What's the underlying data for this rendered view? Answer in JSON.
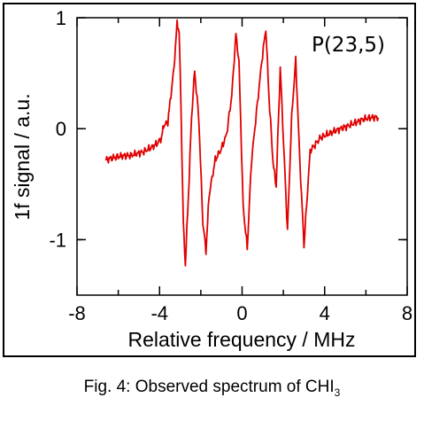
{
  "caption": {
    "text": "Fig. 4: Observed spectrum of CHI",
    "subscript": "3"
  },
  "chart_data": {
    "type": "line",
    "xlabel": "Relative frequency / MHz",
    "ylabel": "1f signal / a.u.",
    "annotation": "P(23,5)",
    "xlim": [
      -8,
      8
    ],
    "ylim": [
      -1.5,
      1.0
    ],
    "x_ticks": [
      -8,
      -4,
      0,
      4,
      8
    ],
    "y_ticks": [
      1,
      0,
      -1
    ],
    "x_tick_labels": [
      "-8",
      "-4",
      "0",
      "4",
      "8"
    ],
    "y_tick_labels": [
      "1",
      "0",
      "-1"
    ],
    "grid": false,
    "line_color": "#e00000",
    "series": [
      {
        "x": [
          -6.6,
          -6.0,
          -5.4,
          -4.8,
          -4.4,
          -4.1,
          -3.9,
          -3.8,
          -3.6,
          -3.45,
          -3.3,
          -3.15,
          -3.05,
          -2.95,
          -2.85,
          -2.75,
          -2.6,
          -2.45,
          -2.3,
          -2.1,
          -1.9,
          -1.75,
          -1.6,
          -1.3,
          -1.0,
          -0.75,
          -0.5,
          -0.3,
          -0.15,
          0.05,
          0.25,
          0.45,
          0.7,
          0.95,
          1.15,
          1.3,
          1.5,
          1.65,
          1.85,
          2.05,
          2.2,
          2.4,
          2.6,
          2.8,
          3.0,
          3.3,
          3.8,
          4.5,
          5.2,
          5.8,
          6.2,
          6.6
        ],
        "y": [
          -0.28,
          -0.25,
          -0.24,
          -0.21,
          -0.17,
          -0.13,
          -0.08,
          0.03,
          0.06,
          0.3,
          0.55,
          0.95,
          0.88,
          0.1,
          -0.85,
          -1.22,
          -0.6,
          0.1,
          0.52,
          0.1,
          -0.85,
          -1.1,
          -0.6,
          -0.28,
          -0.18,
          -0.05,
          0.3,
          0.85,
          0.6,
          -0.7,
          -1.08,
          -0.3,
          0.15,
          0.6,
          0.9,
          0.3,
          -0.3,
          -0.52,
          0.55,
          -0.3,
          -0.92,
          0.1,
          0.62,
          -0.3,
          -1.05,
          -0.2,
          -0.08,
          -0.02,
          0.03,
          0.08,
          0.1,
          0.1
        ]
      }
    ]
  }
}
